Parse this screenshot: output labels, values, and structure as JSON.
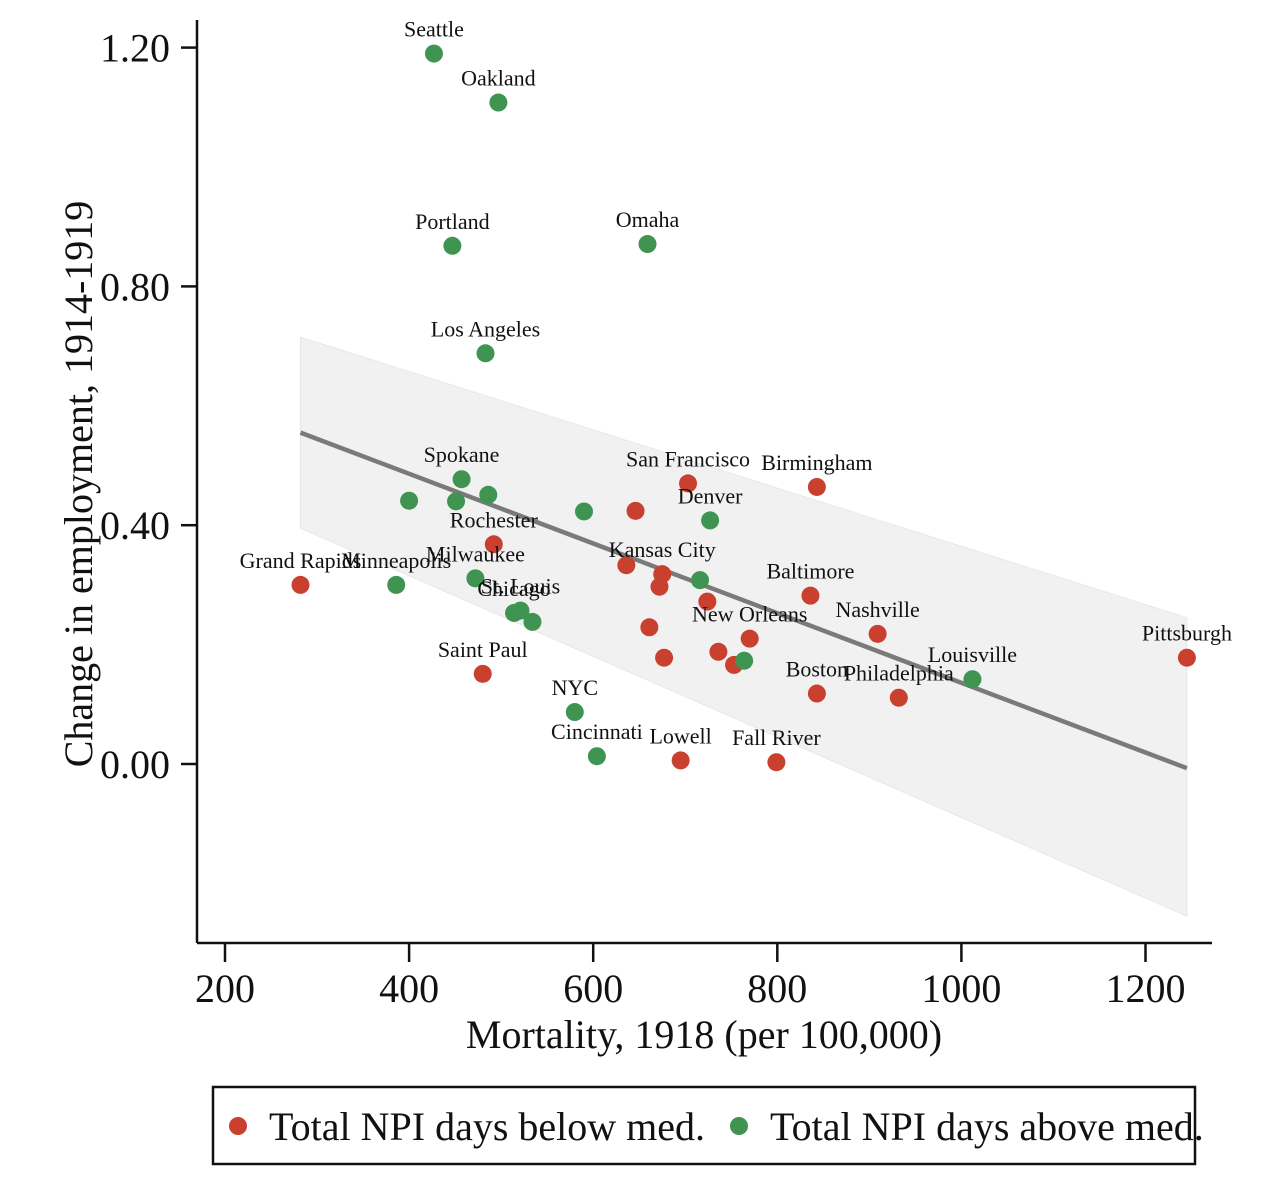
{
  "chart_data": {
    "type": "scatter",
    "title": "",
    "xlabel": "Mortality, 1918 (per 100,000)",
    "ylabel": "Change in employment, 1914-1919",
    "xlim": [
      170,
      1270
    ],
    "ylim": [
      -0.3,
      1.25
    ],
    "xticks": [
      200,
      400,
      600,
      800,
      1000,
      1200
    ],
    "xtick_labels": [
      "200",
      "400",
      "600",
      "800",
      "1000",
      "1200"
    ],
    "yticks": [
      0.0,
      0.4,
      0.8,
      1.2
    ],
    "ytick_labels": [
      "0.00",
      "0.40",
      "0.80",
      "1.20"
    ],
    "grid": false,
    "legend": {
      "placement": "bottom",
      "entries": [
        {
          "name": "Total NPI days below med.",
          "color": "#c9402f"
        },
        {
          "name": "Total NPI days above med.",
          "color": "#3f9452"
        }
      ]
    },
    "fit_line": {
      "x": [
        282,
        1245
      ],
      "y": [
        0.555,
        -0.007
      ],
      "color": "#7a7a7a",
      "ci_upper": [
        0.715,
        0.245
      ],
      "ci_lower": [
        0.395,
        -0.255
      ],
      "ci_color": "#f1f1f1"
    },
    "series": [
      {
        "name": "Total NPI days below med.",
        "color": "#c9402f",
        "points": [
          {
            "x": 282,
            "y": 0.3,
            "label": "Grand Rapids"
          },
          {
            "x": 492,
            "y": 0.368,
            "label": "Rochester"
          },
          {
            "x": 480,
            "y": 0.151,
            "label": "Saint Paul"
          },
          {
            "x": 703,
            "y": 0.47,
            "label": "San Francisco"
          },
          {
            "x": 646,
            "y": 0.424,
            "label": ""
          },
          {
            "x": 843,
            "y": 0.464,
            "label": "Birmingham"
          },
          {
            "x": 636,
            "y": 0.333,
            "label": ""
          },
          {
            "x": 675,
            "y": 0.318,
            "label": "Kansas City"
          },
          {
            "x": 672,
            "y": 0.297,
            "label": ""
          },
          {
            "x": 724,
            "y": 0.272,
            "label": ""
          },
          {
            "x": 836,
            "y": 0.282,
            "label": "Baltimore"
          },
          {
            "x": 661,
            "y": 0.229,
            "label": ""
          },
          {
            "x": 909,
            "y": 0.218,
            "label": "Nashville"
          },
          {
            "x": 770,
            "y": 0.21,
            "label": "New Orleans"
          },
          {
            "x": 736,
            "y": 0.188,
            "label": ""
          },
          {
            "x": 677,
            "y": 0.178,
            "label": ""
          },
          {
            "x": 753,
            "y": 0.166,
            "label": ""
          },
          {
            "x": 843,
            "y": 0.118,
            "label": "Boston"
          },
          {
            "x": 932,
            "y": 0.111,
            "label": "Philadelphia"
          },
          {
            "x": 1245,
            "y": 0.178,
            "label": "Pittsburgh"
          },
          {
            "x": 695,
            "y": 0.006,
            "label": "Lowell"
          },
          {
            "x": 799,
            "y": 0.003,
            "label": "Fall River"
          }
        ]
      },
      {
        "name": "Total NPI days above med.",
        "color": "#3f9452",
        "points": [
          {
            "x": 427,
            "y": 1.19,
            "label": "Seattle"
          },
          {
            "x": 497,
            "y": 1.108,
            "label": "Oakland"
          },
          {
            "x": 447,
            "y": 0.868,
            "label": "Portland"
          },
          {
            "x": 659,
            "y": 0.871,
            "label": "Omaha"
          },
          {
            "x": 483,
            "y": 0.688,
            "label": "Los Angeles"
          },
          {
            "x": 457,
            "y": 0.477,
            "label": "Spokane"
          },
          {
            "x": 486,
            "y": 0.451,
            "label": ""
          },
          {
            "x": 400,
            "y": 0.441,
            "label": ""
          },
          {
            "x": 451,
            "y": 0.44,
            "label": ""
          },
          {
            "x": 590,
            "y": 0.423,
            "label": ""
          },
          {
            "x": 727,
            "y": 0.408,
            "label": "Denver"
          },
          {
            "x": 386,
            "y": 0.3,
            "label": "Minneapolis"
          },
          {
            "x": 472,
            "y": 0.311,
            "label": "Milwaukee"
          },
          {
            "x": 716,
            "y": 0.308,
            "label": ""
          },
          {
            "x": 514,
            "y": 0.253,
            "label": "Chicago"
          },
          {
            "x": 521,
            "y": 0.257,
            "label": "St. Louis"
          },
          {
            "x": 534,
            "y": 0.238,
            "label": ""
          },
          {
            "x": 580,
            "y": 0.087,
            "label": "NYC"
          },
          {
            "x": 604,
            "y": 0.013,
            "label": "Cincinnati"
          },
          {
            "x": 764,
            "y": 0.173,
            "label": ""
          },
          {
            "x": 1012,
            "y": 0.142,
            "label": "Louisville"
          }
        ]
      }
    ]
  }
}
